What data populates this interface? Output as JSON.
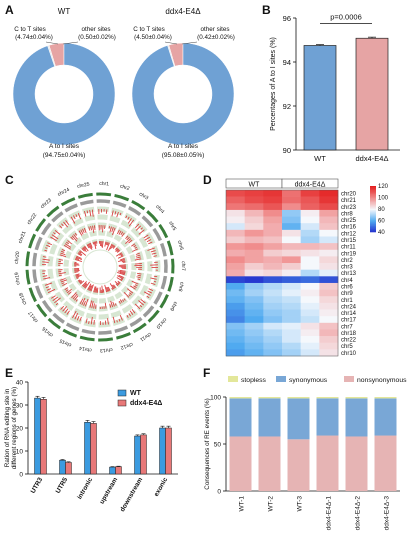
{
  "panel_letters": {
    "A": "A",
    "B": "B",
    "C": "C",
    "D": "D",
    "E": "E",
    "F": "F"
  },
  "colors": {
    "blue": "#6fa1d4",
    "pink": "#e6a4a4",
    "yellow": "#e3e79a",
    "dark_red": "#e82a2a",
    "heat_blue": "#2233cc"
  },
  "chart_data": [
    {
      "panel": "A",
      "type": "pie",
      "title": "WT",
      "slices": [
        {
          "label": "C to T sites",
          "value_label": "(4.74±0.04%)",
          "value": 4.74,
          "color": "#e6a4a4"
        },
        {
          "label": "other sites",
          "value_label": "(0.50±0.02%)",
          "value": 0.5,
          "color": "#e8e8e8"
        },
        {
          "label": "A to I sites",
          "value_label": "(94.75±0.04%)",
          "value": 94.75,
          "color": "#6fa1d4"
        }
      ]
    },
    {
      "panel": "A",
      "type": "pie",
      "title": "ddx4-E4Δ",
      "slices": [
        {
          "label": "C to T sites",
          "value_label": "(4.50±0.04%)",
          "value": 4.5,
          "color": "#e6a4a4"
        },
        {
          "label": "other sites",
          "value_label": "(0.42±0.02%)",
          "value": 0.42,
          "color": "#e8e8e8"
        },
        {
          "label": "A to I sites",
          "value_label": "(95.08±0.05%)",
          "value": 95.08,
          "color": "#6fa1d4"
        }
      ]
    },
    {
      "panel": "B",
      "type": "bar",
      "categories": [
        "WT",
        "ddx4-E4Δ"
      ],
      "values": [
        94.75,
        95.08
      ],
      "errors": [
        0.04,
        0.05
      ],
      "colors": [
        "#6fa1d4",
        "#e6a4a4"
      ],
      "ylabel": "Percentages of A to I sites (%)",
      "ylim": [
        90,
        96
      ],
      "yticks": [
        "90",
        "92",
        "94",
        "96"
      ],
      "annotation": "p=0.0006"
    },
    {
      "panel": "C",
      "type": "circos",
      "labels": [
        "chr1",
        "chr2",
        "chr3",
        "chr4",
        "chr5",
        "chr6",
        "chr7",
        "chr8",
        "chr9",
        "chr10",
        "chr11",
        "chr12",
        "chr13",
        "chr14",
        "chr15",
        "chr16",
        "chr17",
        "chr18",
        "chr19",
        "chr20",
        "chr21",
        "chr22",
        "chr23",
        "chr24",
        "chr25"
      ]
    },
    {
      "panel": "D",
      "type": "heatmap",
      "groups": [
        "WT",
        "ddx4-E4Δ"
      ],
      "rows": [
        "chr20",
        "chr21",
        "chr23",
        "chr8",
        "chr25",
        "chr16",
        "chr12",
        "chr15",
        "chr11",
        "chr19",
        "chr2",
        "chr3",
        "chr13",
        "chr4",
        "chr6",
        "chr9",
        "chr1",
        "chr24",
        "chr14",
        "chr17",
        "chr7",
        "chr18",
        "chr22",
        "chr5",
        "chr10"
      ],
      "colorbar_ticks": [
        "120",
        "100",
        "80",
        "60",
        "40"
      ],
      "colorbar_range": [
        40,
        120
      ],
      "values": [
        [
          112,
          114,
          116,
          105,
          114,
          118
        ],
        [
          108,
          112,
          114,
          106,
          110,
          116
        ],
        [
          104,
          106,
          110,
          100,
          108,
          112
        ],
        [
          84,
          92,
          100,
          68,
          82,
          96
        ],
        [
          82,
          88,
          96,
          66,
          80,
          92
        ],
        [
          76,
          86,
          94,
          62,
          76,
          90
        ],
        [
          92,
          98,
          94,
          84,
          72,
          80
        ],
        [
          88,
          92,
          90,
          80,
          70,
          76
        ],
        [
          98,
          100,
          96,
          92,
          92,
          90
        ],
        [
          94,
          96,
          88,
          86,
          84,
          82
        ],
        [
          100,
          96,
          94,
          98,
          80,
          86
        ],
        [
          96,
          88,
          92,
          88,
          80,
          84
        ],
        [
          94,
          84,
          86,
          82,
          72,
          78
        ],
        [
          44,
          42,
          46,
          48,
          50,
          46
        ],
        [
          60,
          68,
          72,
          76,
          80,
          88
        ],
        [
          64,
          70,
          74,
          78,
          82,
          90
        ],
        [
          62,
          66,
          72,
          74,
          80,
          86
        ],
        [
          58,
          64,
          70,
          72,
          78,
          84
        ],
        [
          56,
          62,
          68,
          70,
          76,
          82
        ],
        [
          54,
          60,
          66,
          70,
          74,
          80
        ],
        [
          66,
          70,
          76,
          78,
          84,
          90
        ],
        [
          64,
          68,
          72,
          76,
          82,
          92
        ],
        [
          62,
          66,
          70,
          76,
          80,
          88
        ],
        [
          60,
          64,
          68,
          72,
          78,
          86
        ],
        [
          58,
          62,
          66,
          70,
          76,
          84
        ]
      ]
    },
    {
      "panel": "E",
      "type": "bar",
      "categories": [
        "UTR3",
        "UTR5",
        "intronic",
        "upstream",
        "downstream",
        "exonic"
      ],
      "series": [
        {
          "name": "WT",
          "color": "#3b9be0",
          "values": [
            33,
            6,
            22.5,
            3,
            16.5,
            20
          ],
          "errors": [
            0.8,
            0.3,
            0.8,
            0.2,
            0.5,
            0.8
          ]
        },
        {
          "name": "ddx4-E4Δ",
          "color": "#e87878",
          "values": [
            32.5,
            5,
            22,
            3.2,
            17,
            20
          ],
          "errors": [
            0.8,
            0.3,
            0.8,
            0.2,
            0.5,
            0.8
          ]
        }
      ],
      "ylabel": "Ration of RNA editing site in different regions of genes (%)",
      "ylim": [
        0,
        40
      ],
      "yticks": [
        "0",
        "10",
        "20",
        "30",
        "40"
      ]
    },
    {
      "panel": "F",
      "type": "bar",
      "stacked": true,
      "categories": [
        "WT-1",
        "WT-2",
        "WT-3",
        "ddx4-E4Δ-1",
        "ddx4-E4Δ-2",
        "ddx4-E4Δ-3"
      ],
      "series": [
        {
          "name": "nonsynonymous",
          "color": "#e6b4b4",
          "values": [
            58,
            58,
            55,
            59,
            58,
            59
          ]
        },
        {
          "name": "synonymous",
          "color": "#79a7d6",
          "values": [
            40.5,
            40.6,
            43.5,
            39.6,
            40.5,
            39.5
          ]
        },
        {
          "name": "stopless",
          "color": "#e3e79a",
          "values": [
            1.5,
            1.4,
            1.5,
            1.4,
            1.5,
            1.5
          ]
        }
      ],
      "legend_order": [
        "stopless",
        "synonymous",
        "nonsynonymous"
      ],
      "ylabel": "Consequences of RE events (%)",
      "ylim": [
        0,
        100
      ],
      "yticks": [
        "0",
        "50",
        "100"
      ]
    }
  ]
}
